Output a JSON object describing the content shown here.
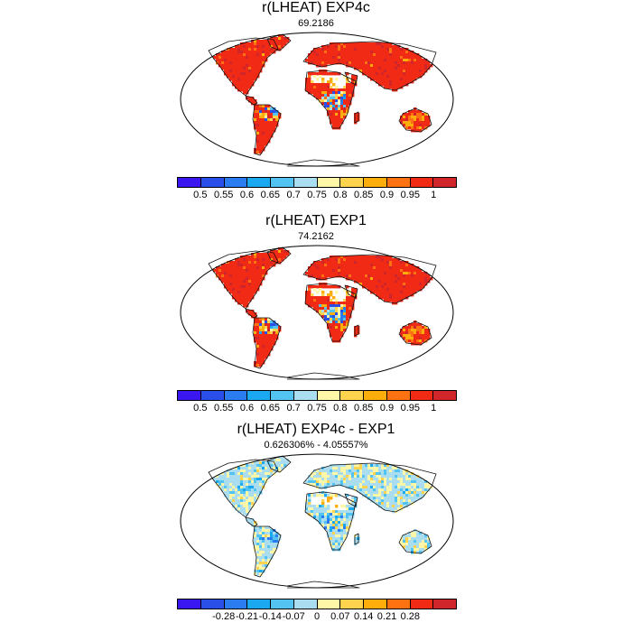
{
  "panels": [
    {
      "title": "r(LHEAT) EXP4c",
      "subtitle": "69.2186",
      "mode": "corr1",
      "colorbar": {
        "colors": [
          "#3a16f0",
          "#2a4fe8",
          "#2a7cf0",
          "#1aa8f0",
          "#53c3f2",
          "#a9ddef",
          "#fff7a8",
          "#ffd34d",
          "#ffad0a",
          "#ff7212",
          "#f02a14",
          "#d0262b"
        ],
        "labels": [
          "0.5",
          "0.55",
          "0.6",
          "0.65",
          "0.7",
          "0.75",
          "0.8",
          "0.85",
          "0.9",
          "0.95",
          "1"
        ]
      }
    },
    {
      "title": "r(LHEAT) EXP1",
      "subtitle": "74.2162",
      "mode": "corr2",
      "colorbar": {
        "colors": [
          "#3a16f0",
          "#2a4fe8",
          "#2a7cf0",
          "#1aa8f0",
          "#53c3f2",
          "#a9ddef",
          "#fff7a8",
          "#ffd34d",
          "#ffad0a",
          "#ff7212",
          "#f02a14",
          "#d0262b"
        ],
        "labels": [
          "0.5",
          "0.55",
          "0.6",
          "0.65",
          "0.7",
          "0.75",
          "0.8",
          "0.85",
          "0.9",
          "0.95",
          "1"
        ]
      }
    },
    {
      "title": "r(LHEAT) EXP4c - EXP1",
      "subtitle": "0.626306% - 4.05557%",
      "mode": "diff",
      "colorbar": {
        "colors": [
          "#3a16f0",
          "#2a4fe8",
          "#2a7cf0",
          "#1aa8f0",
          "#53c3f2",
          "#a9ddef",
          "#fff7a8",
          "#ffd34d",
          "#ffad0a",
          "#ff7212",
          "#f02a14",
          "#d0262b"
        ],
        "labels": [
          "-0.28",
          "-0.21",
          "-0.14",
          "-0.07",
          "0",
          "0.07",
          "0.14",
          "0.21",
          "0.28"
        ]
      }
    }
  ]
}
